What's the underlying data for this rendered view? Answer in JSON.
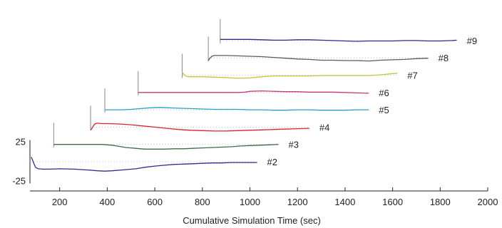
{
  "chart_data": {
    "type": "line",
    "title": "",
    "xlabel": "Cumulative Simulation Time (sec)",
    "ylabel": "",
    "xlim": [
      75,
      2000
    ],
    "xticks": [
      200,
      400,
      600,
      800,
      1000,
      1200,
      1400,
      1600,
      1800,
      2000
    ],
    "scale_labels": [
      "25",
      "-25"
    ],
    "ylim_per_series": [
      -25,
      25
    ],
    "grid": false,
    "legend": "none; each series is labeled at its right end",
    "series": [
      {
        "name": "#2",
        "color": "#2b2f8e",
        "start": 80,
        "stagger_level": 0,
        "x": [
          80,
          85,
          90,
          95,
          100,
          110,
          130,
          160,
          200,
          260,
          320,
          360,
          390,
          420,
          460,
          520,
          560,
          600,
          640,
          680,
          720,
          760,
          800,
          840,
          880,
          920,
          960,
          1000,
          1030
        ],
        "y": [
          12,
          6,
          -2,
          -10,
          -15,
          -18,
          -19,
          -19,
          -18,
          -19,
          -21,
          -23,
          -24,
          -23,
          -21,
          -18,
          -14,
          -11,
          -9,
          -7,
          -6,
          -5,
          -4,
          -3,
          -3,
          -2,
          -2,
          -2,
          -2
        ]
      },
      {
        "name": "#3",
        "color": "#3e6b46",
        "start": 175,
        "stagger_level": 1,
        "x": [
          175,
          200,
          250,
          300,
          350,
          380,
          400,
          420,
          440,
          460,
          480,
          500,
          520,
          540,
          560,
          600,
          640,
          680,
          720,
          760,
          800,
          840,
          880,
          920,
          960,
          1000,
          1040,
          1080,
          1120
        ],
        "y": [
          0,
          0,
          0,
          0,
          0,
          0,
          -1,
          -2,
          -4,
          -6,
          -8,
          -9,
          -10,
          -11,
          -12,
          -12,
          -12,
          -11,
          -11,
          -10,
          -9,
          -8,
          -7,
          -6,
          -4,
          -3,
          -2,
          -1,
          0
        ]
      },
      {
        "name": "#4",
        "color": "#d8262a",
        "start": 330,
        "stagger_level": 2,
        "x": [
          330,
          335,
          340,
          345,
          350,
          360,
          380,
          400,
          450,
          500,
          550,
          600,
          650,
          700,
          750,
          800,
          850,
          900,
          950,
          1000,
          1050,
          1100,
          1150,
          1200,
          1250
        ],
        "y": [
          -8,
          -4,
          2,
          6,
          9,
          10,
          9,
          9,
          8,
          6,
          3,
          0,
          -3,
          -6,
          -8,
          -9,
          -10,
          -10,
          -9,
          -8,
          -7,
          -6,
          -5,
          -4,
          -3
        ]
      },
      {
        "name": "#5",
        "color": "#2a9fc6",
        "start": 390,
        "stagger_level": 3,
        "x": [
          390,
          420,
          460,
          500,
          540,
          580,
          620,
          660,
          700,
          750,
          800,
          850,
          900,
          950,
          1000,
          1050,
          1100,
          1150,
          1200,
          1250,
          1300,
          1350,
          1400,
          1450,
          1500
        ],
        "y": [
          0,
          0,
          0,
          1,
          3,
          5,
          6,
          5,
          4,
          3,
          2,
          1,
          1,
          1,
          0,
          0,
          -1,
          -1,
          0,
          0,
          -1,
          -1,
          -1,
          0,
          0
        ]
      },
      {
        "name": "#6",
        "color": "#c83a7e",
        "start": 530,
        "stagger_level": 4,
        "x": [
          530,
          600,
          700,
          800,
          900,
          950,
          980,
          1000,
          1050,
          1100,
          1150,
          1200,
          1250,
          1300,
          1350,
          1400,
          1450,
          1500
        ],
        "y": [
          0,
          0,
          0,
          0,
          0,
          0,
          1,
          3,
          4,
          3,
          2,
          2,
          1,
          1,
          1,
          0,
          -1,
          -2
        ]
      },
      {
        "name": "#7",
        "color": "#c8c43a",
        "start": 715,
        "stagger_level": 5,
        "x": [
          715,
          720,
          730,
          740,
          760,
          800,
          850,
          900,
          950,
          1000,
          1050,
          1100,
          1150,
          1200,
          1250,
          1300,
          1350,
          1400,
          1450,
          1500,
          1550,
          1600,
          1620
        ],
        "y": [
          8,
          3,
          -2,
          -4,
          -4,
          -4,
          -5,
          -6,
          -8,
          -7,
          -4,
          -2,
          -2,
          -2,
          -2,
          -1,
          -1,
          -1,
          -1,
          -1,
          1,
          4,
          5
        ]
      },
      {
        "name": "#8",
        "color": "#5c5c5c",
        "start": 825,
        "stagger_level": 6,
        "x": [
          825,
          830,
          840,
          850,
          880,
          900,
          950,
          1000,
          1050,
          1100,
          1150,
          1200,
          1250,
          1300,
          1350,
          1400,
          1450,
          1500,
          1550,
          1600,
          1650,
          1700,
          1750
        ],
        "y": [
          -8,
          -2,
          4,
          6,
          6,
          6,
          5,
          4,
          3,
          1,
          -1,
          -3,
          -4,
          -6,
          -6,
          -7,
          -7,
          -8,
          -6,
          -5,
          -4,
          -2,
          -1
        ]
      },
      {
        "name": "#9",
        "color": "#2a2c8e",
        "start": 875,
        "stagger_level": 7,
        "x": [
          875,
          900,
          950,
          1000,
          1050,
          1100,
          1150,
          1200,
          1250,
          1300,
          1350,
          1400,
          1450,
          1500,
          1550,
          1600,
          1650,
          1700,
          1750,
          1800,
          1850,
          1870
        ],
        "y": [
          3,
          3,
          3,
          3,
          2,
          1,
          1,
          2,
          2,
          1,
          0,
          -1,
          -2,
          -1,
          -1,
          -1,
          0,
          0,
          -1,
          -1,
          0,
          1
        ]
      }
    ]
  }
}
